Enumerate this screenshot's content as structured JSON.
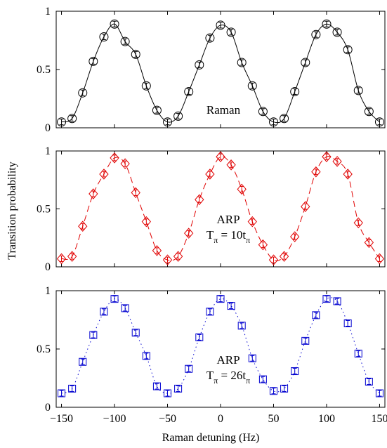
{
  "chart_data": [
    {
      "type": "line",
      "annotation_lines": [
        "Raman"
      ],
      "color": "#000000",
      "marker": "circle",
      "line_style": "solid",
      "xlim": [
        -155,
        155
      ],
      "ylim": [
        0,
        1
      ],
      "yticks": [
        0,
        0.5,
        1
      ],
      "ytick_labels": [
        "0",
        "0.5",
        "1"
      ],
      "x": [
        -150,
        -140,
        -130,
        -120,
        -110,
        -100,
        -90,
        -80,
        -70,
        -60,
        -50,
        -40,
        -30,
        -20,
        -10,
        0,
        10,
        20,
        30,
        40,
        50,
        60,
        70,
        80,
        90,
        100,
        110,
        120,
        130,
        140,
        150
      ],
      "values": [
        0.05,
        0.08,
        0.3,
        0.57,
        0.78,
        0.89,
        0.74,
        0.63,
        0.36,
        0.15,
        0.05,
        0.1,
        0.31,
        0.54,
        0.77,
        0.88,
        0.82,
        0.56,
        0.36,
        0.14,
        0.05,
        0.08,
        0.31,
        0.56,
        0.8,
        0.89,
        0.82,
        0.67,
        0.32,
        0.14,
        0.05
      ]
    },
    {
      "type": "line",
      "annotation_lines": [
        "ARP",
        "T",
        "π",
        " = 10t",
        "π"
      ],
      "color": "#e00000",
      "marker": "diamond",
      "line_style": "dashed",
      "xlim": [
        -155,
        155
      ],
      "ylim": [
        0,
        1
      ],
      "yticks": [
        0,
        0.5,
        1
      ],
      "ytick_labels": [
        "0",
        "0.5",
        "1"
      ],
      "x": [
        -150,
        -140,
        -130,
        -120,
        -110,
        -100,
        -90,
        -80,
        -70,
        -60,
        -50,
        -40,
        -30,
        -20,
        -10,
        0,
        10,
        20,
        30,
        40,
        50,
        60,
        70,
        80,
        90,
        100,
        110,
        120,
        130,
        140,
        150
      ],
      "values": [
        0.07,
        0.09,
        0.35,
        0.63,
        0.8,
        0.94,
        0.89,
        0.64,
        0.39,
        0.14,
        0.06,
        0.09,
        0.29,
        0.58,
        0.8,
        0.95,
        0.88,
        0.67,
        0.39,
        0.19,
        0.06,
        0.09,
        0.26,
        0.52,
        0.82,
        0.95,
        0.91,
        0.8,
        0.38,
        0.21,
        0.07
      ]
    },
    {
      "type": "line",
      "annotation_lines": [
        "ARP",
        "T",
        "π",
        " = 26t",
        "π"
      ],
      "color": "#0000d0",
      "marker": "square",
      "line_style": "dotted",
      "xlim": [
        -155,
        155
      ],
      "ylim": [
        0,
        1
      ],
      "yticks": [
        0,
        0.5,
        1
      ],
      "ytick_labels": [
        "0",
        "0.5",
        "1"
      ],
      "xticks": [
        -150,
        -100,
        -50,
        0,
        50,
        100,
        150
      ],
      "xtick_labels": [
        "−150",
        "−100",
        "−50",
        "0",
        "50",
        "100",
        "150"
      ],
      "x": [
        -150,
        -140,
        -130,
        -120,
        -110,
        -100,
        -90,
        -80,
        -70,
        -60,
        -50,
        -40,
        -30,
        -20,
        -10,
        0,
        10,
        20,
        30,
        40,
        50,
        60,
        70,
        80,
        90,
        100,
        110,
        120,
        130,
        140,
        150
      ],
      "values": [
        0.12,
        0.16,
        0.39,
        0.62,
        0.82,
        0.93,
        0.85,
        0.64,
        0.44,
        0.18,
        0.12,
        0.16,
        0.33,
        0.6,
        0.82,
        0.93,
        0.87,
        0.7,
        0.42,
        0.24,
        0.14,
        0.16,
        0.31,
        0.57,
        0.79,
        0.93,
        0.91,
        0.72,
        0.46,
        0.22,
        0.12
      ]
    }
  ],
  "ylabel": "Transition probability",
  "xlabel": "Raman detuning (Hz)"
}
